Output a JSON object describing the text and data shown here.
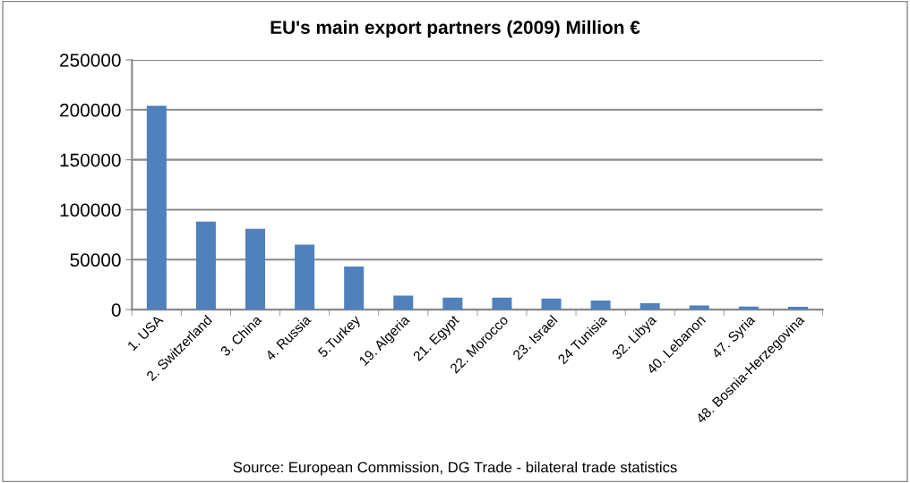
{
  "chart_data": {
    "type": "bar",
    "title": "EU's main export partners (2009) Million €",
    "categories": [
      "1. USA",
      "2. Switzerland",
      "3. China",
      "4. Russia",
      "5.Turkey",
      "19. Algeria",
      "21. Egypt",
      "22. Morocco",
      "23. Israel",
      "24 Tunisia",
      "32. Libya",
      "40. Lebanon",
      "47. Syria",
      "48. Bosnia-Herzegovina"
    ],
    "values": [
      204000,
      88000,
      81000,
      65000,
      43000,
      14000,
      12000,
      12000,
      11000,
      9000,
      6500,
      4200,
      3000,
      2700
    ],
    "color": "#4f81bd",
    "ylim": [
      0,
      250000
    ],
    "yticks": [
      0,
      50000,
      100000,
      150000,
      200000,
      250000
    ],
    "grid": "y",
    "legend": false,
    "annotations": [
      "Source: European Commission, DG Trade - bilateral trade statistics"
    ]
  }
}
